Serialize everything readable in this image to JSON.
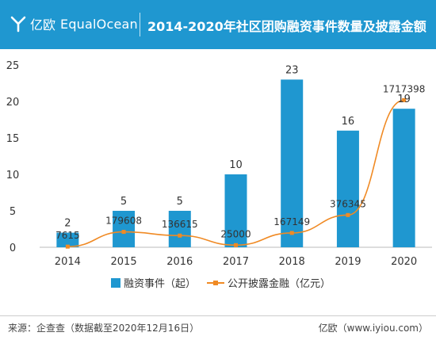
{
  "header": {
    "logo_cn": "亿欧",
    "logo_en": "EqualOcean",
    "title": "2014-2020年社区团购融资事件数量及披露金额"
  },
  "colors": {
    "header": "#1f97d0",
    "bar": "#1f97d0",
    "line": "#f08a24"
  },
  "chart_data": {
    "type": "bar",
    "title": "2014-2020年社区团购融资事件数量及披露金额",
    "categories": [
      "2014",
      "2015",
      "2016",
      "2017",
      "2018",
      "2019",
      "2020"
    ],
    "ylim": [
      0,
      25
    ],
    "yticks": [
      0,
      5,
      10,
      15,
      20,
      25
    ],
    "series": [
      {
        "name": "融资事件（起）",
        "type": "bar",
        "values": [
          2,
          5,
          5,
          10,
          23,
          16,
          19
        ]
      },
      {
        "name": "公开披露金融（亿元）",
        "type": "line",
        "values": [
          7615,
          179608,
          136615,
          25000,
          167149,
          376345,
          1717398
        ]
      }
    ],
    "legend": "bottom"
  },
  "footer": {
    "source": "来源：企查查（数据截至2020年12月16日）",
    "brand": "亿欧（www.iyiou.com）"
  }
}
